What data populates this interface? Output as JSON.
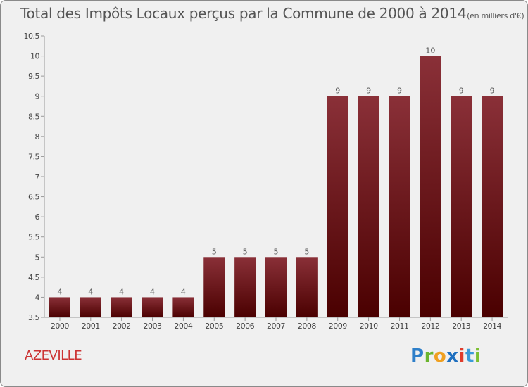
{
  "header": {
    "title": "Total des Impôts Locaux perçus par la Commune de 2000 à 2014",
    "unit": "(en milliers d'€)"
  },
  "commune": {
    "name": "AZEVILLE"
  },
  "logo": {
    "letters": [
      {
        "ch": "P",
        "color": "#2e7fc9"
      },
      {
        "ch": "r",
        "color": "#6bb52e"
      },
      {
        "ch": "o",
        "color": "#f0a020"
      },
      {
        "ch": "x",
        "color": "#1e6fbf"
      },
      {
        "ch": "i",
        "color": "#e03c2c"
      },
      {
        "ch": "t",
        "color": "#3a9ad9"
      },
      {
        "ch": "i",
        "color": "#7cbf32"
      }
    ]
  },
  "chart_data": {
    "type": "bar",
    "title": "Total des Impôts Locaux perçus par la Commune de 2000 à 2014",
    "xlabel": "",
    "ylabel": "",
    "categories": [
      "2000",
      "2001",
      "2002",
      "2003",
      "2004",
      "2005",
      "2006",
      "2007",
      "2008",
      "2009",
      "2010",
      "2011",
      "2012",
      "2013",
      "2014"
    ],
    "values": [
      4,
      4,
      4,
      4,
      4,
      5,
      5,
      5,
      5,
      9,
      9,
      9,
      10,
      9,
      9
    ],
    "ylim": [
      3.5,
      10.5
    ],
    "yticks": [
      "3.5",
      "4",
      "4.5",
      "5",
      "5.5",
      "6",
      "6.5",
      "7",
      "7.5",
      "8",
      "8.5",
      "9",
      "9.5",
      "10",
      "10.5"
    ],
    "grid": false,
    "bar_color_top": "#8a3038",
    "bar_color_bottom": "#4a0000"
  }
}
